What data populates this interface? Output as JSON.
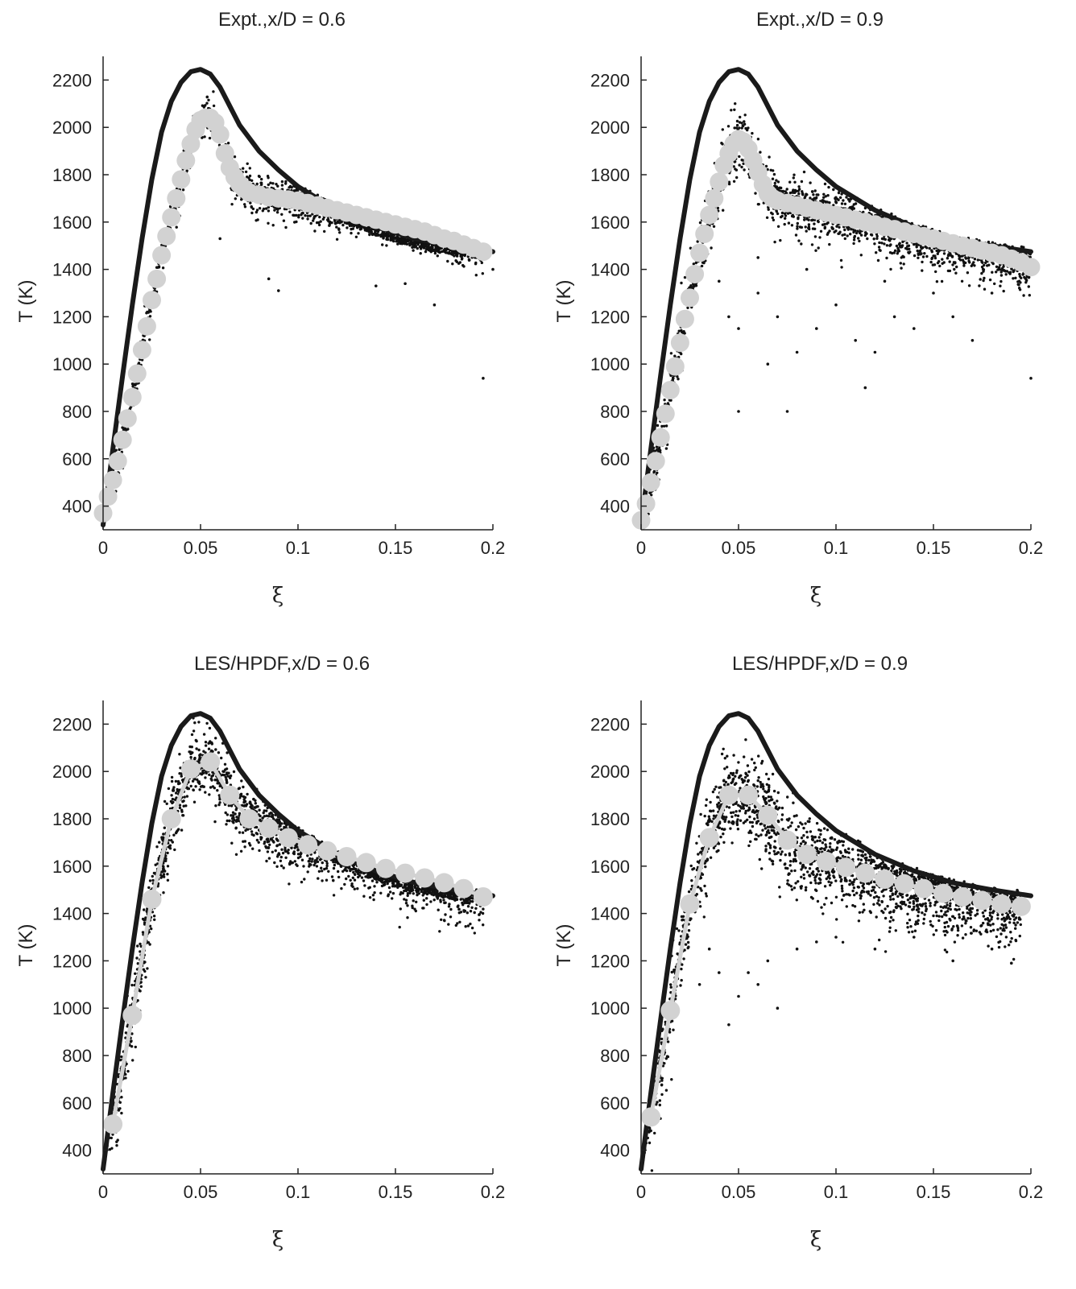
{
  "figure": {
    "background": "#ffffff"
  },
  "colors": {
    "line": "#1a1a1a",
    "scatter": "#111111",
    "marker": "#d2d2d2",
    "axis": "#222222"
  },
  "chart_data": [
    {
      "type": "scatter",
      "title": "Expt.,x/D = 0.6",
      "xlabel": "ξ",
      "ylabel": "T (K)",
      "xlim": [
        0,
        0.2
      ],
      "ylim": [
        300,
        2300
      ],
      "xticks": [
        0,
        0.05,
        0.1,
        0.15,
        0.2
      ],
      "xtick_labels": [
        "0",
        "0.05",
        "0.1",
        "0.15",
        "0.2"
      ],
      "yticks": [
        400,
        600,
        800,
        1000,
        1200,
        1400,
        1600,
        1800,
        2000,
        2200
      ],
      "yticks_labels": [
        "400",
        "600",
        "800",
        "1000",
        "1200",
        "1400",
        "1600",
        "1800",
        "2000",
        "2200"
      ],
      "grid": false,
      "marker_connected": false,
      "scatter_spread": 40,
      "scatter_outliers": [
        [
          0.085,
          1360
        ],
        [
          0.09,
          1310
        ],
        [
          0.14,
          1330
        ],
        [
          0.155,
          1340
        ],
        [
          0.17,
          1250
        ],
        [
          0.195,
          940
        ],
        [
          0.06,
          1530
        ],
        [
          0.2,
          1400
        ]
      ],
      "equilibrium_line": {
        "x": [
          0,
          0.005,
          0.01,
          0.015,
          0.02,
          0.025,
          0.03,
          0.035,
          0.04,
          0.045,
          0.05,
          0.055,
          0.06,
          0.065,
          0.07,
          0.08,
          0.09,
          0.1,
          0.12,
          0.14,
          0.16,
          0.18,
          0.2
        ],
        "y": [
          320,
          640,
          950,
          1250,
          1530,
          1780,
          1980,
          2110,
          2190,
          2235,
          2245,
          2225,
          2170,
          2090,
          2010,
          1900,
          1820,
          1750,
          1650,
          1580,
          1530,
          1500,
          1475
        ]
      },
      "conditional_mean": {
        "x": [
          0,
          0.0025,
          0.005,
          0.0075,
          0.01,
          0.0125,
          0.015,
          0.0175,
          0.02,
          0.0225,
          0.025,
          0.0275,
          0.03,
          0.0325,
          0.035,
          0.0375,
          0.04,
          0.0425,
          0.045,
          0.0475,
          0.05,
          0.0525,
          0.055,
          0.0575,
          0.06,
          0.0625,
          0.065,
          0.0675,
          0.07,
          0.0725,
          0.075,
          0.08,
          0.085,
          0.09,
          0.095,
          0.1,
          0.105,
          0.11,
          0.115,
          0.12,
          0.125,
          0.13,
          0.135,
          0.14,
          0.145,
          0.15,
          0.155,
          0.16,
          0.165,
          0.17,
          0.175,
          0.18,
          0.185,
          0.19,
          0.195
        ],
        "y": [
          370,
          440,
          510,
          590,
          680,
          770,
          860,
          960,
          1060,
          1160,
          1270,
          1360,
          1460,
          1540,
          1620,
          1700,
          1780,
          1860,
          1930,
          1990,
          2030,
          2040,
          2040,
          2020,
          1970,
          1890,
          1830,
          1790,
          1760,
          1740,
          1725,
          1715,
          1705,
          1700,
          1695,
          1690,
          1680,
          1670,
          1660,
          1650,
          1640,
          1630,
          1620,
          1610,
          1600,
          1590,
          1580,
          1570,
          1560,
          1545,
          1530,
          1520,
          1505,
          1490,
          1475
        ]
      }
    },
    {
      "type": "scatter",
      "title": "Expt.,x/D = 0.9",
      "xlabel": "ξ",
      "ylabel": "T (K)",
      "xlim": [
        0,
        0.2
      ],
      "ylim": [
        300,
        2300
      ],
      "xticks": [
        0,
        0.05,
        0.1,
        0.15,
        0.2
      ],
      "xtick_labels": [
        "0",
        "0.05",
        "0.1",
        "0.15",
        "0.2"
      ],
      "yticks": [
        400,
        600,
        800,
        1000,
        1200,
        1400,
        1600,
        1800,
        2000,
        2200
      ],
      "yticks_labels": [
        "400",
        "600",
        "800",
        "1000",
        "1200",
        "1400",
        "1600",
        "1800",
        "2000",
        "2200"
      ],
      "grid": false,
      "marker_connected": false,
      "scatter_spread": 60,
      "scatter_outliers": [
        [
          0.04,
          1350
        ],
        [
          0.045,
          1200
        ],
        [
          0.05,
          1150
        ],
        [
          0.05,
          800
        ],
        [
          0.06,
          1300
        ],
        [
          0.065,
          1000
        ],
        [
          0.07,
          1200
        ],
        [
          0.075,
          800
        ],
        [
          0.08,
          1050
        ],
        [
          0.09,
          1150
        ],
        [
          0.1,
          1250
        ],
        [
          0.11,
          1100
        ],
        [
          0.115,
          900
        ],
        [
          0.12,
          1050
        ],
        [
          0.13,
          1200
        ],
        [
          0.14,
          1150
        ],
        [
          0.15,
          1300
        ],
        [
          0.16,
          1200
        ],
        [
          0.17,
          1100
        ],
        [
          0.18,
          1300
        ],
        [
          0.2,
          940
        ],
        [
          0.06,
          1450
        ],
        [
          0.085,
          1400
        ],
        [
          0.125,
          1350
        ]
      ],
      "equilibrium_line": {
        "x": [
          0,
          0.005,
          0.01,
          0.015,
          0.02,
          0.025,
          0.03,
          0.035,
          0.04,
          0.045,
          0.05,
          0.055,
          0.06,
          0.065,
          0.07,
          0.08,
          0.09,
          0.1,
          0.12,
          0.14,
          0.16,
          0.18,
          0.2
        ],
        "y": [
          320,
          640,
          950,
          1250,
          1530,
          1780,
          1980,
          2110,
          2190,
          2235,
          2245,
          2225,
          2170,
          2090,
          2010,
          1900,
          1820,
          1750,
          1650,
          1580,
          1530,
          1500,
          1475
        ]
      },
      "conditional_mean": {
        "x": [
          0,
          0.0025,
          0.005,
          0.0075,
          0.01,
          0.0125,
          0.015,
          0.0175,
          0.02,
          0.0225,
          0.025,
          0.0275,
          0.03,
          0.0325,
          0.035,
          0.0375,
          0.04,
          0.0425,
          0.045,
          0.0475,
          0.05,
          0.0525,
          0.055,
          0.0575,
          0.06,
          0.0625,
          0.065,
          0.0675,
          0.07,
          0.075,
          0.08,
          0.085,
          0.09,
          0.095,
          0.1,
          0.105,
          0.11,
          0.115,
          0.12,
          0.125,
          0.13,
          0.135,
          0.14,
          0.145,
          0.15,
          0.155,
          0.16,
          0.165,
          0.17,
          0.175,
          0.18,
          0.185,
          0.19,
          0.195,
          0.2
        ],
        "y": [
          340,
          410,
          500,
          590,
          690,
          790,
          890,
          990,
          1090,
          1190,
          1280,
          1380,
          1470,
          1550,
          1630,
          1700,
          1770,
          1840,
          1890,
          1930,
          1950,
          1940,
          1910,
          1860,
          1810,
          1760,
          1720,
          1700,
          1690,
          1680,
          1670,
          1660,
          1650,
          1640,
          1630,
          1620,
          1610,
          1600,
          1590,
          1580,
          1570,
          1560,
          1550,
          1540,
          1530,
          1520,
          1510,
          1500,
          1490,
          1480,
          1470,
          1460,
          1445,
          1430,
          1410
        ]
      }
    },
    {
      "type": "scatter",
      "title": "LES/HPDF,x/D = 0.6",
      "xlabel": "ξ",
      "ylabel": "T (K)",
      "xlim": [
        0,
        0.2
      ],
      "ylim": [
        300,
        2300
      ],
      "xticks": [
        0,
        0.05,
        0.1,
        0.15,
        0.2
      ],
      "xtick_labels": [
        "0",
        "0.05",
        "0.1",
        "0.15",
        "0.2"
      ],
      "yticks": [
        400,
        600,
        800,
        1000,
        1200,
        1400,
        1600,
        1800,
        2000,
        2200
      ],
      "yticks_labels": [
        "400",
        "600",
        "800",
        "1000",
        "1200",
        "1400",
        "1600",
        "1800",
        "2000",
        "2200"
      ],
      "grid": false,
      "marker_connected": true,
      "scatter_spread": 70,
      "scatter_outliers": [],
      "equilibrium_line": {
        "x": [
          0,
          0.005,
          0.01,
          0.015,
          0.02,
          0.025,
          0.03,
          0.035,
          0.04,
          0.045,
          0.05,
          0.055,
          0.06,
          0.065,
          0.07,
          0.08,
          0.09,
          0.1,
          0.12,
          0.14,
          0.16,
          0.18,
          0.2
        ],
        "y": [
          320,
          640,
          950,
          1250,
          1530,
          1780,
          1980,
          2110,
          2190,
          2235,
          2245,
          2225,
          2170,
          2090,
          2010,
          1900,
          1820,
          1750,
          1650,
          1580,
          1530,
          1500,
          1475
        ]
      },
      "conditional_mean": {
        "x": [
          0.005,
          0.015,
          0.025,
          0.035,
          0.045,
          0.055,
          0.065,
          0.075,
          0.085,
          0.095,
          0.105,
          0.115,
          0.125,
          0.135,
          0.145,
          0.155,
          0.165,
          0.175,
          0.185,
          0.195
        ],
        "y": [
          510,
          970,
          1460,
          1800,
          2010,
          2040,
          1900,
          1800,
          1760,
          1720,
          1690,
          1665,
          1640,
          1615,
          1590,
          1570,
          1550,
          1530,
          1505,
          1470
        ]
      }
    },
    {
      "type": "scatter",
      "title": "LES/HPDF,x/D = 0.9",
      "xlabel": "ξ",
      "ylabel": "T (K)",
      "xlim": [
        0,
        0.2
      ],
      "ylim": [
        300,
        2300
      ],
      "xticks": [
        0,
        0.05,
        0.1,
        0.15,
        0.2
      ],
      "xtick_labels": [
        "0",
        "0.05",
        "0.1",
        "0.15",
        "0.2"
      ],
      "yticks": [
        400,
        600,
        800,
        1000,
        1200,
        1400,
        1600,
        1800,
        2000,
        2200
      ],
      "yticks_labels": [
        "400",
        "600",
        "800",
        "1000",
        "1200",
        "1400",
        "1600",
        "1800",
        "2000",
        "2200"
      ],
      "grid": false,
      "marker_connected": true,
      "scatter_spread": 90,
      "scatter_outliers": [
        [
          0.045,
          930
        ],
        [
          0.05,
          1050
        ],
        [
          0.055,
          1150
        ],
        [
          0.06,
          1100
        ],
        [
          0.07,
          1000
        ],
        [
          0.065,
          1200
        ],
        [
          0.08,
          1250
        ],
        [
          0.09,
          1280
        ],
        [
          0.1,
          1300
        ],
        [
          0.12,
          1250
        ],
        [
          0.14,
          1300
        ],
        [
          0.16,
          1200
        ],
        [
          0.18,
          1250
        ],
        [
          0.19,
          1190
        ],
        [
          0.04,
          1150
        ],
        [
          0.035,
          1250
        ],
        [
          0.03,
          1100
        ]
      ],
      "equilibrium_line": {
        "x": [
          0,
          0.005,
          0.01,
          0.015,
          0.02,
          0.025,
          0.03,
          0.035,
          0.04,
          0.045,
          0.05,
          0.055,
          0.06,
          0.065,
          0.07,
          0.08,
          0.09,
          0.1,
          0.12,
          0.14,
          0.16,
          0.18,
          0.2
        ],
        "y": [
          320,
          640,
          950,
          1250,
          1530,
          1780,
          1980,
          2110,
          2190,
          2235,
          2245,
          2225,
          2170,
          2090,
          2010,
          1900,
          1820,
          1750,
          1650,
          1580,
          1530,
          1500,
          1475
        ]
      },
      "conditional_mean": {
        "x": [
          0.005,
          0.015,
          0.025,
          0.035,
          0.045,
          0.055,
          0.065,
          0.075,
          0.085,
          0.095,
          0.105,
          0.115,
          0.125,
          0.135,
          0.145,
          0.155,
          0.165,
          0.175,
          0.185,
          0.195
        ],
        "y": [
          540,
          990,
          1440,
          1720,
          1900,
          1900,
          1815,
          1710,
          1650,
          1620,
          1595,
          1570,
          1545,
          1525,
          1505,
          1485,
          1470,
          1455,
          1440,
          1430
        ]
      }
    }
  ]
}
